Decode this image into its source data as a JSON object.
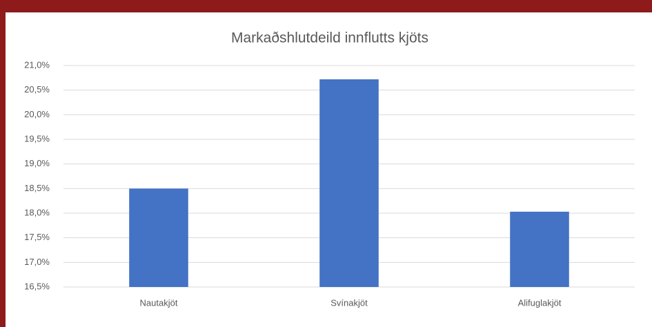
{
  "chart_data": {
    "type": "bar",
    "title": "Markaðshlutdeild innflutts kjöts",
    "categories": [
      "Nautakjöt",
      "Svínakjöt",
      "Alifuglakjöt"
    ],
    "values": [
      18.5,
      20.72,
      18.03
    ],
    "color": "#4472c4",
    "ylim": [
      16.5,
      21.0
    ],
    "yticks": [
      {
        "value": 16.5,
        "label": "16,5%"
      },
      {
        "value": 17.0,
        "label": "17,0%"
      },
      {
        "value": 17.5,
        "label": "17,5%"
      },
      {
        "value": 18.0,
        "label": "18,0%"
      },
      {
        "value": 18.5,
        "label": "18,5%"
      },
      {
        "value": 19.0,
        "label": "19,0%"
      },
      {
        "value": 19.5,
        "label": "19,5%"
      },
      {
        "value": 20.0,
        "label": "20,0%"
      },
      {
        "value": 20.5,
        "label": "20,5%"
      },
      {
        "value": 21.0,
        "label": "21,0%"
      }
    ],
    "grid": true
  }
}
